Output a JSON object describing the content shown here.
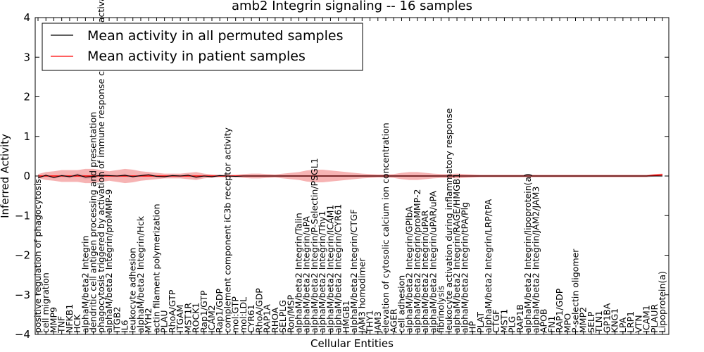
{
  "chart_data": {
    "type": "line",
    "title": "amb2 Integrin signaling -- 16 samples",
    "xlabel": "Cellular Entities",
    "ylabel": "Inferred Activity",
    "ylim": [
      -4,
      4
    ],
    "yticks": [
      -4,
      -3,
      -2,
      -1,
      0,
      1,
      2,
      3,
      4
    ],
    "ytick_labels": [
      "−4",
      "−3",
      "−2",
      "−1",
      "0",
      "1",
      "2",
      "3",
      "4"
    ],
    "grid": false,
    "legend_position": "top-left",
    "categories": [
      "positive regulation of phagocytosis",
      "cell migration",
      "MMP9",
      "TNF",
      "NFKB1",
      "HCK",
      "alphaM/beta2 Integrin",
      "dendritic cell antigen processing and presentation",
      "phagocytosis triggered by activation of immune response cell surface activating receptor",
      "alphaM/beta2 Integrin/proMMP-9",
      "ITGB2",
      "IL6",
      "leukocyte adhesion",
      "alphaM/beta2 Integrin/Hck",
      "MYH2",
      "actin filament polymerization",
      "PLAU",
      "RhoA/GTP",
      "ITGAM",
      "MST1R",
      "ROCK1",
      "Rap1/GTP",
      "ICAM2",
      "Rap1/GDP",
      "complement component iC3b receptor activity",
      "mol:GTP",
      "mol:LDL",
      "CYR61",
      "RhoA/GDP",
      "RAP1A",
      "RHOA",
      "SELPLG",
      "Ron/MSP",
      "alphaM/beta2 Integrin/Talin",
      "alphaM/beta2 Integrin/uPA",
      "alphaM/beta2 Integrin/P-Selectin/PSGL1",
      "alphaM/beta2 Integrin/Thy1",
      "alphaM/beta2 Integrin/ICAM1",
      "alphaM/beta2 Integrin/CYR61",
      "HMGB1",
      "alphaM/beta2 Integrin/CTGF",
      "JAM3 homodimer",
      "THY1",
      "JAM3",
      "elevation of cytosolic calcium ion concentration",
      "AGER",
      "cell adhesion",
      "alphaM/beta2 Integrin/GPIbA",
      "alphaM/beta2 Integrin/proMMP-2",
      "alphaM/beta2 Integrin/uPAR",
      "alphaM/beta2 Integrin/uPAR/uPA",
      "fibrinolysis",
      "leukocyte activation during inflammatory response",
      "alphaM/beta2 Integrin/RAGE/HMGB1",
      "alphaM/beta2 Integrin/tPA/Plg",
      "HP",
      "PLAT",
      "alphaM/beta2 Integrin/LRP/tPA",
      "CTGF",
      "MST1",
      "PLG",
      "RAP1B",
      "alphaM/beta2 Integrin/lipoprotein(a)",
      "alphaM/beta2 Integrin/JAM2/JAM3",
      "APOB",
      "FN1",
      "RAP1/GDP",
      "MPO",
      "P-selectin oligomer",
      "MMP2",
      "SELP",
      "TLN1",
      "GP1BA",
      "KNG1",
      "LPA",
      "LRP1",
      "VTN",
      "ICAM1",
      "PLAUR",
      "Lipoprotein(a)"
    ],
    "series": [
      {
        "name": "Mean activity in all permuted samples",
        "color": "#000000",
        "values": [
          -0.05,
          0.02,
          -0.04,
          0.01,
          -0.02,
          0.03,
          -0.03,
          -0.01,
          0.02,
          0.01,
          0.0,
          0.02,
          -0.02,
          0.01,
          0.03,
          -0.01,
          -0.02,
          0.01,
          0.0,
          0.02,
          -0.03,
          0.0,
          -0.02,
          0.01,
          0.0,
          -0.01,
          0.0,
          0.0,
          0.0,
          0.0,
          0.0,
          0.0,
          0.0,
          0.0,
          0.0,
          0.0,
          0.0,
          0.0,
          0.0,
          0.0,
          0.0,
          0.0,
          0.0,
          0.0,
          0.0,
          0.0,
          0.0,
          0.0,
          0.0,
          0.0,
          0.0,
          0.0,
          0.0,
          0.0,
          0.0,
          0.0,
          0.0,
          0.0,
          0.0,
          0.0,
          0.0,
          0.0,
          0.0,
          0.0,
          0.0,
          0.0,
          0.0,
          0.0,
          0.0,
          0.0,
          0.0,
          0.0,
          0.0,
          0.0,
          0.0,
          0.0,
          0.0,
          0.0,
          0.0,
          0.0
        ]
      },
      {
        "name": "Mean activity in patient samples",
        "color": "#ff0000",
        "values": [
          0.0,
          0.0,
          0.0,
          0.0,
          0.0,
          0.0,
          0.0,
          0.0,
          0.0,
          0.0,
          0.0,
          0.0,
          0.0,
          0.0,
          0.0,
          0.0,
          0.0,
          0.0,
          0.0,
          0.0,
          0.0,
          0.0,
          0.0,
          0.0,
          0.0,
          0.0,
          0.0,
          0.0,
          0.0,
          0.0,
          0.0,
          0.0,
          0.0,
          0.0,
          0.0,
          0.0,
          0.0,
          0.0,
          0.0,
          0.0,
          0.0,
          0.0,
          0.0,
          0.0,
          0.0,
          0.0,
          0.0,
          0.0,
          0.0,
          0.0,
          0.0,
          0.0,
          0.0,
          0.0,
          0.0,
          0.0,
          0.0,
          0.0,
          0.0,
          0.0,
          0.0,
          0.0,
          0.0,
          0.0,
          0.0,
          0.0,
          0.0,
          0.0,
          0.0,
          0.0,
          0.0,
          0.0,
          0.0,
          0.0,
          0.0,
          0.0,
          0.0,
          0.0,
          0.02,
          0.03
        ]
      }
    ],
    "bands": {
      "patient_spread": [
        0.05,
        0.1,
        0.12,
        0.15,
        0.15,
        0.15,
        0.18,
        0.18,
        0.15,
        0.12,
        0.15,
        0.18,
        0.16,
        0.12,
        0.1,
        0.08,
        0.06,
        0.06,
        0.06,
        0.08,
        0.1,
        0.06,
        0.04,
        0.03,
        0.03,
        0.03,
        0.05,
        0.06,
        0.06,
        0.05,
        0.04,
        0.06,
        0.08,
        0.1,
        0.14,
        0.16,
        0.16,
        0.14,
        0.12,
        0.1,
        0.08,
        0.06,
        0.05,
        0.04,
        0.04,
        0.05,
        0.08,
        0.1,
        0.1,
        0.08,
        0.06,
        0.05,
        0.05,
        0.06,
        0.05,
        0.04,
        0.03,
        0.03,
        0.03,
        0.03,
        0.03,
        0.03,
        0.03,
        0.03,
        0.03,
        0.03,
        0.03,
        0.03,
        0.03,
        0.03,
        0.03,
        0.03,
        0.03,
        0.03,
        0.03,
        0.03,
        0.03,
        0.03,
        0.03,
        0.03
      ],
      "permuted_spread": [
        0.02,
        0.03,
        0.03,
        0.04,
        0.04,
        0.04,
        0.05,
        0.04,
        0.03,
        0.03,
        0.03,
        0.04,
        0.03,
        0.03,
        0.03,
        0.03,
        0.03,
        0.03,
        0.03,
        0.03,
        0.04,
        0.03,
        0.03,
        0.03,
        0.02,
        0.02,
        0.02,
        0.02,
        0.02,
        0.02,
        0.02,
        0.02,
        0.02,
        0.02,
        0.02,
        0.02,
        0.02,
        0.02,
        0.02,
        0.02,
        0.02,
        0.02,
        0.02,
        0.02,
        0.02,
        0.02,
        0.02,
        0.02,
        0.02,
        0.02,
        0.02,
        0.02,
        0.02,
        0.02,
        0.02,
        0.02,
        0.02,
        0.02,
        0.02,
        0.02,
        0.02,
        0.02,
        0.02,
        0.02,
        0.02,
        0.02,
        0.02,
        0.02,
        0.02,
        0.02,
        0.02,
        0.02,
        0.02,
        0.02,
        0.02,
        0.02,
        0.02,
        0.02,
        0.02,
        0.02
      ]
    }
  }
}
